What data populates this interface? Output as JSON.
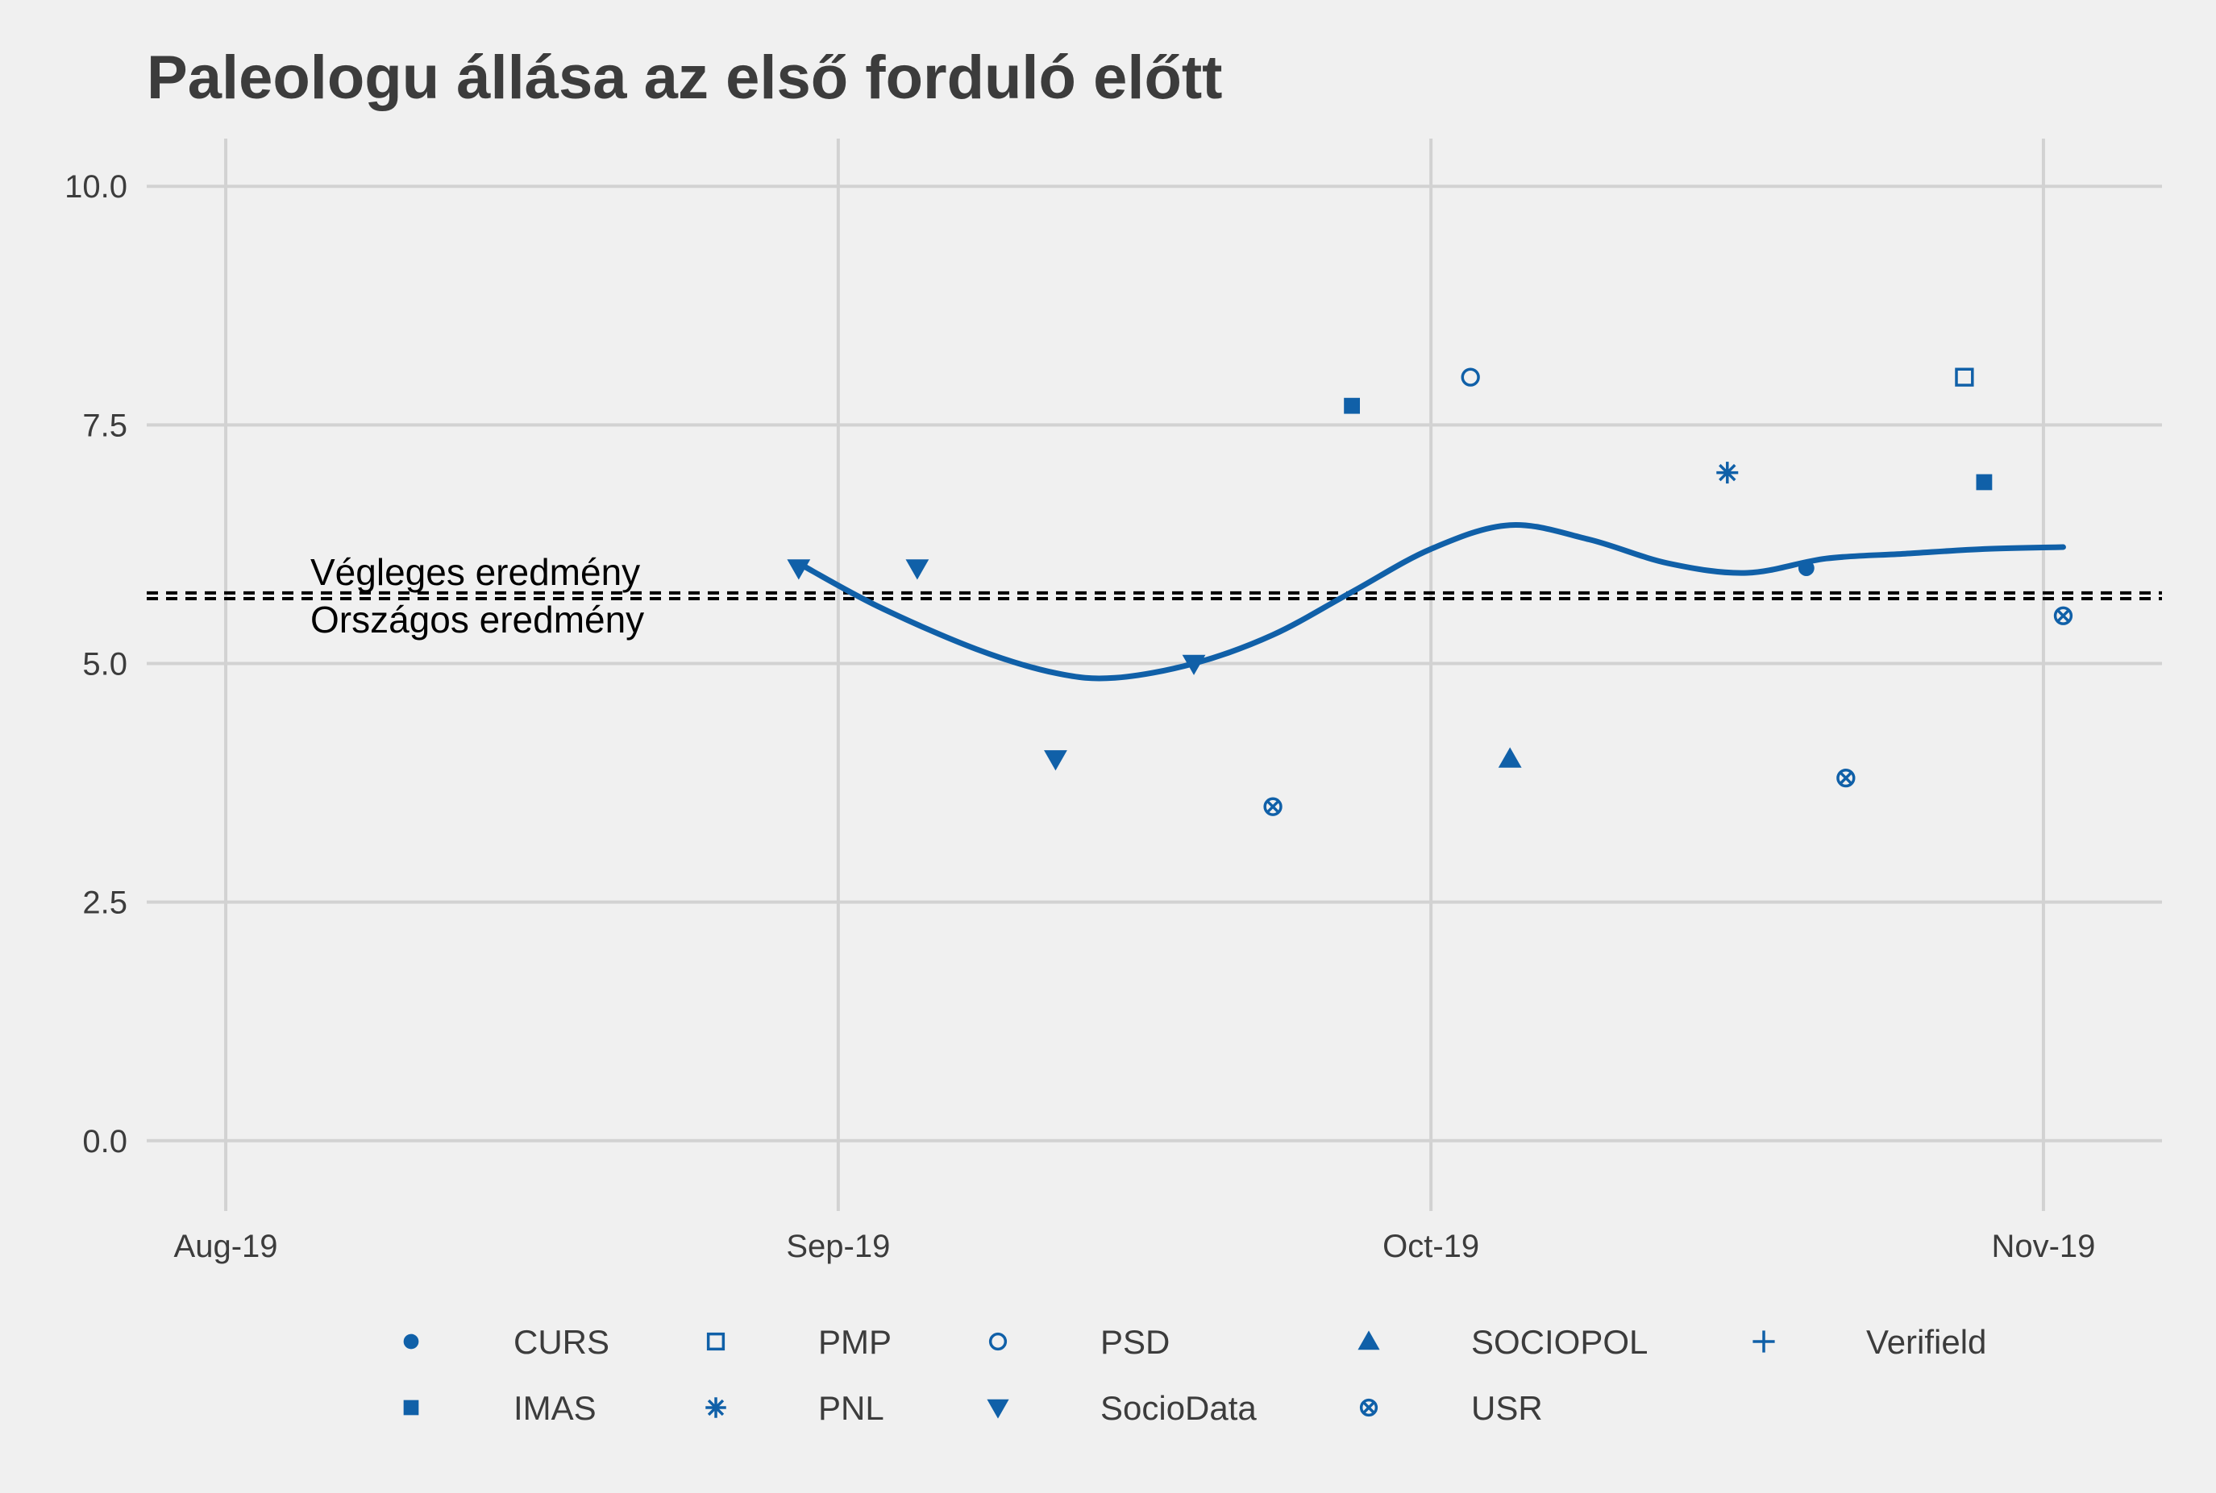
{
  "chart_data": {
    "type": "scatter",
    "title": "Paleologu állása az első forduló előtt",
    "xlabel": "",
    "ylabel": "",
    "x_ticks": [
      "Aug-19",
      "Sep-19",
      "Oct-19",
      "Nov-19"
    ],
    "x_tick_dates": [
      "2019-08-01",
      "2019-09-01",
      "2019-10-01",
      "2019-11-01"
    ],
    "xlim": [
      "2019-07-28",
      "2019-11-07"
    ],
    "y_ticks": [
      "0.0",
      "2.5",
      "5.0",
      "7.5",
      "10.0"
    ],
    "ylim": [
      -0.5,
      10.5
    ],
    "grid": true,
    "legend_position": "bottom",
    "color": "#1060a8",
    "reference_lines": [
      {
        "label": "Végleges eredmény",
        "value": 5.74
      },
      {
        "label": "Országos eredmény",
        "value": 5.68
      }
    ],
    "series": [
      {
        "name": "CURS",
        "marker": "filled-circle",
        "points": [
          {
            "x": "2019-10-20",
            "y": 6.0
          }
        ]
      },
      {
        "name": "IMAS",
        "marker": "filled-square",
        "points": [
          {
            "x": "2019-09-27",
            "y": 7.7
          },
          {
            "x": "2019-10-29",
            "y": 6.9
          }
        ]
      },
      {
        "name": "PMP",
        "marker": "open-square",
        "points": [
          {
            "x": "2019-10-28",
            "y": 8.0
          }
        ]
      },
      {
        "name": "PNL",
        "marker": "asterisk",
        "points": [
          {
            "x": "2019-10-16",
            "y": 7.0
          }
        ]
      },
      {
        "name": "PSD",
        "marker": "open-circle",
        "points": [
          {
            "x": "2019-10-03",
            "y": 8.0
          }
        ]
      },
      {
        "name": "SocioData",
        "marker": "filled-triangle-down",
        "points": [
          {
            "x": "2019-08-30",
            "y": 6.0
          },
          {
            "x": "2019-09-05",
            "y": 6.0
          },
          {
            "x": "2019-09-12",
            "y": 4.0
          },
          {
            "x": "2019-09-19",
            "y": 5.0
          }
        ]
      },
      {
        "name": "SOCIOPOL",
        "marker": "filled-triangle-up",
        "points": [
          {
            "x": "2019-10-05",
            "y": 4.0
          }
        ]
      },
      {
        "name": "USR",
        "marker": "circle-cross",
        "points": [
          {
            "x": "2019-09-23",
            "y": 3.5
          },
          {
            "x": "2019-10-22",
            "y": 3.8
          },
          {
            "x": "2019-11-02",
            "y": 5.5
          }
        ]
      },
      {
        "name": "Verifield",
        "marker": "plus",
        "points": []
      }
    ],
    "trend": {
      "x": [
        "2019-08-30",
        "2019-09-03",
        "2019-09-08",
        "2019-09-12",
        "2019-09-15",
        "2019-09-19",
        "2019-09-23",
        "2019-09-27",
        "2019-10-01",
        "2019-10-05",
        "2019-10-09",
        "2019-10-13",
        "2019-10-17",
        "2019-10-21",
        "2019-10-25",
        "2019-10-29",
        "2019-11-02"
      ],
      "y": [
        6.05,
        5.6,
        5.15,
        4.9,
        4.85,
        5.0,
        5.3,
        5.75,
        6.2,
        6.45,
        6.3,
        6.05,
        5.95,
        6.1,
        6.15,
        6.2,
        6.22
      ]
    },
    "legend_order": [
      "CURS",
      "PMP",
      "PSD",
      "SOCIOPOL",
      "Verifield",
      "IMAS",
      "PNL",
      "SocioData",
      "USR"
    ]
  }
}
